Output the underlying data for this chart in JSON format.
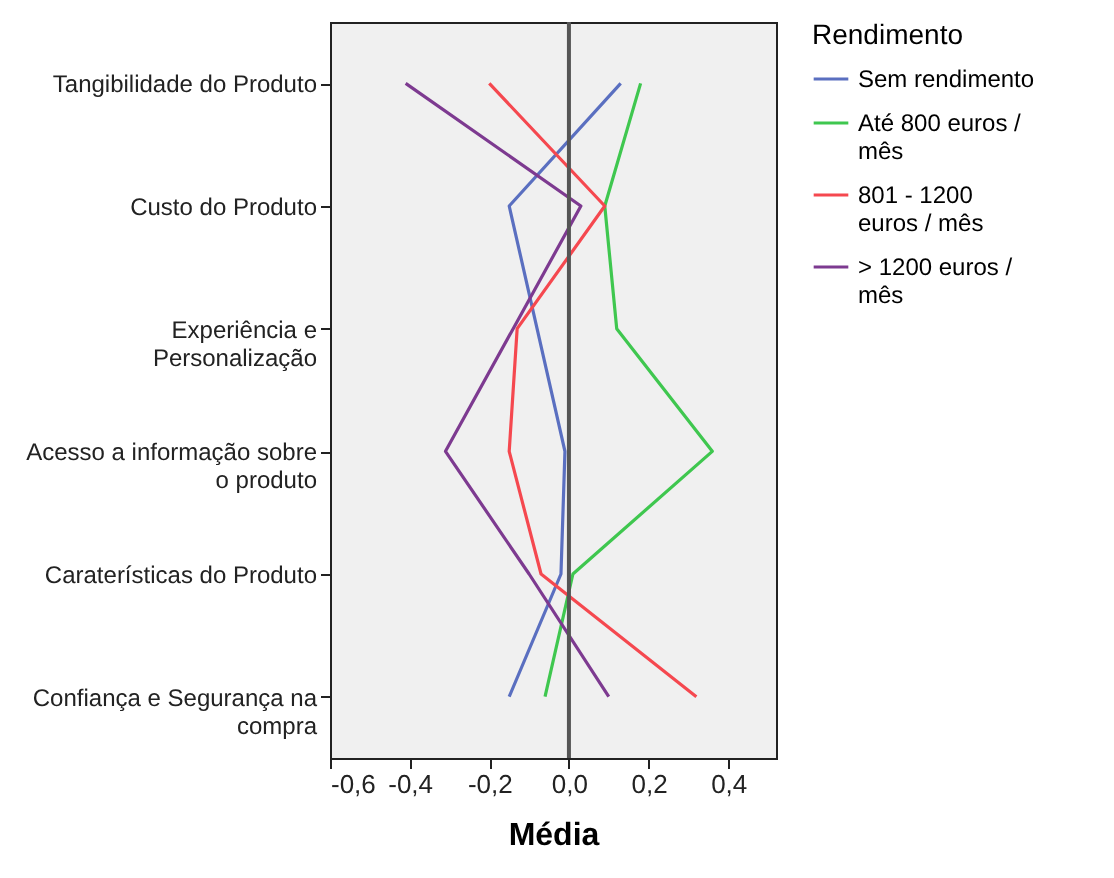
{
  "chart_data": {
    "type": "line",
    "xlabel": "Média",
    "legend_title": "Rendimento",
    "categories": [
      "Tangibilidade do Produto",
      "Custo do Produto",
      "Experiência e Personalização",
      "Acesso a informação sobre o produto",
      "Caraterísticas do Produto",
      "Confiança e Segurança na compra"
    ],
    "orientation": "horizontal",
    "series": [
      {
        "name": "Sem rendimento",
        "color": "#5a6fc0",
        "values": [
          0.13,
          -0.15,
          -0.08,
          -0.01,
          -0.02,
          -0.15
        ]
      },
      {
        "name": "Até 800 euros / mês",
        "color": "#3fc74f",
        "values": [
          0.18,
          0.09,
          0.12,
          0.36,
          0.01,
          -0.06
        ]
      },
      {
        "name": "801 - 1200 euros / mês",
        "color": "#f5484f",
        "values": [
          -0.2,
          0.09,
          -0.13,
          -0.15,
          -0.07,
          0.32
        ]
      },
      {
        "name": "> 1200 euros / mês",
        "color": "#7d3a90",
        "values": [
          -0.41,
          0.03,
          -0.14,
          -0.31,
          -0.1,
          0.1
        ]
      }
    ],
    "xlim": [
      -0.6,
      0.52
    ],
    "xticks": [
      {
        "value": -0.6,
        "label": "-0,6"
      },
      {
        "value": -0.4,
        "label": "-0,4"
      },
      {
        "value": -0.2,
        "label": "-0,2"
      },
      {
        "value": 0,
        "label": "0,0"
      },
      {
        "value": 0.2,
        "label": "0,2"
      },
      {
        "value": 0.4,
        "label": "0,4"
      }
    ],
    "ref_lines": [
      {
        "axis": "x",
        "value": 0,
        "color": "#555555"
      }
    ],
    "grid": false,
    "legend": "right",
    "line_style": "solid",
    "marker": "none"
  }
}
